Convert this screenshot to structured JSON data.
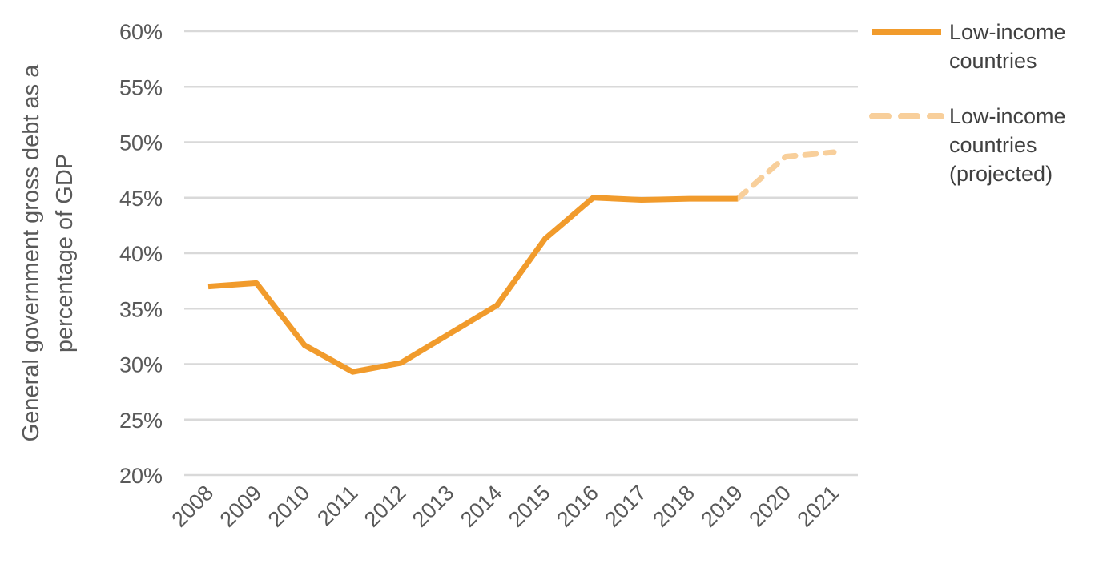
{
  "chart_data": {
    "type": "line",
    "title": "",
    "ylabel_lines": [
      "General government gross debt as a",
      "percentage of GDP"
    ],
    "xlabel": "",
    "categories": [
      "2008",
      "2009",
      "2010",
      "2011",
      "2012",
      "2013",
      "2014",
      "2015",
      "2016",
      "2017",
      "2018",
      "2019",
      "2020",
      "2021"
    ],
    "ylim": [
      20,
      60
    ],
    "yticks": [
      20,
      25,
      30,
      35,
      40,
      45,
      50,
      55,
      60
    ],
    "ytick_labels": [
      "20%",
      "25%",
      "30%",
      "35%",
      "40%",
      "45%",
      "50%",
      "55%",
      "60%"
    ],
    "grid": true,
    "legend_position": "right",
    "series": [
      {
        "name_lines": [
          "Low-income",
          "countries"
        ],
        "color": "#f19b2c",
        "style": "solid",
        "x": [
          "2008",
          "2009",
          "2010",
          "2011",
          "2012",
          "2013",
          "2014",
          "2015",
          "2016",
          "2017",
          "2018",
          "2019"
        ],
        "values": [
          37.0,
          37.3,
          31.7,
          29.3,
          30.1,
          32.7,
          35.3,
          41.3,
          45.0,
          44.8,
          44.9,
          44.9
        ]
      },
      {
        "name_lines": [
          "Low-income",
          "countries",
          "(projected)"
        ],
        "color": "#f8cf9b",
        "style": "dashed",
        "x": [
          "2019",
          "2020",
          "2021"
        ],
        "values": [
          44.9,
          48.7,
          49.1
        ]
      }
    ]
  }
}
